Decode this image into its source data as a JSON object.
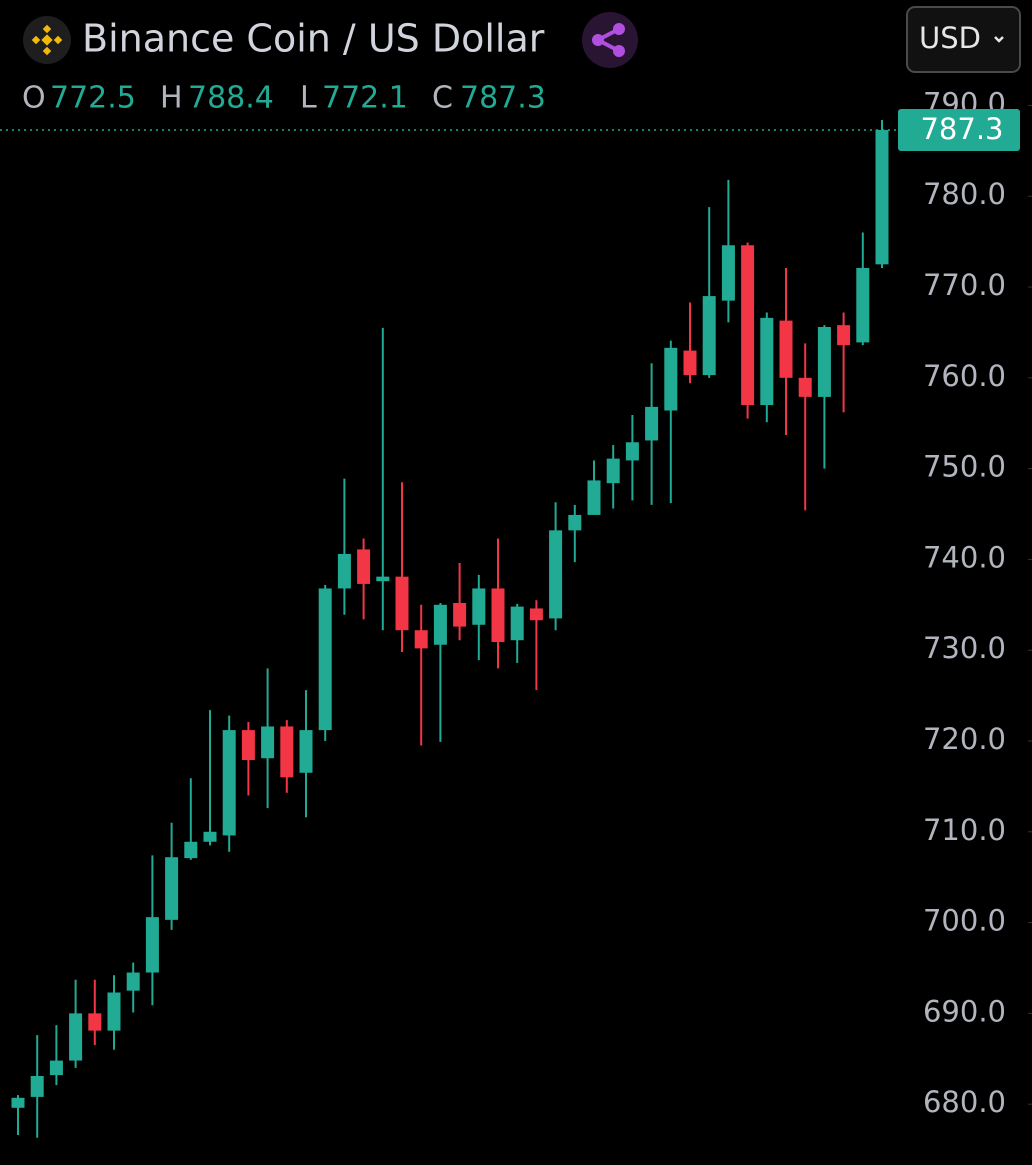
{
  "chart_data": {
    "type": "candlestick",
    "title": "Binance Coin / US Dollar",
    "currency": "USD",
    "ohlc_legend": [
      {
        "label": "O",
        "value": 772.5
      },
      {
        "label": "H",
        "value": 788.4
      },
      {
        "label": "L",
        "value": 772.1
      },
      {
        "label": "C",
        "value": 787.3
      }
    ],
    "up_color": "#22ab94",
    "down_color": "#f23645",
    "open": [
      679.6,
      680.8,
      683.2,
      684.8,
      690,
      688.1,
      692.5,
      694.5,
      700.3,
      707.1,
      708.9,
      709.6,
      721.2,
      718.1,
      721.6,
      716.5,
      721.2,
      736.8,
      741.1,
      737.6,
      738.1,
      732.2,
      730.6,
      735.2,
      732.8,
      736.8,
      731.1,
      734.6,
      733.5,
      743.2,
      744.9,
      748.4,
      750.9,
      753.1,
      756.4,
      763,
      760.3,
      768.5,
      774.6,
      757,
      766.3,
      760,
      757.9,
      765.8,
      763.9,
      772.5
    ],
    "high": [
      681,
      687.6,
      688.7,
      693.7,
      693.7,
      694.2,
      695.6,
      707.4,
      711,
      715.9,
      723.4,
      722.8,
      722.1,
      728,
      722.3,
      725.6,
      737.2,
      748.9,
      742.3,
      765.5,
      748.5,
      735,
      735.2,
      739.6,
      738.3,
      742.3,
      735.1,
      735.5,
      746.3,
      746,
      750.9,
      752.6,
      755.9,
      761.6,
      764.1,
      768.3,
      778.8,
      781.8,
      774.9,
      767.2,
      772.1,
      763.8,
      765.8,
      767.2,
      776,
      788.4
    ],
    "low": [
      676.6,
      676.3,
      682.1,
      684,
      686.5,
      686,
      690.1,
      690.9,
      699.2,
      706.9,
      708.5,
      707.8,
      714,
      712.6,
      714.3,
      711.6,
      720,
      733.9,
      733.4,
      732.2,
      729.8,
      719.5,
      719.9,
      731.1,
      728.9,
      728,
      728.6,
      725.6,
      732.2,
      739.7,
      744.9,
      745.6,
      746.5,
      746,
      746.2,
      759.4,
      760,
      766.1,
      755.5,
      755.1,
      753.7,
      745.4,
      750,
      756.2,
      763.6,
      772.1
    ],
    "close": [
      680.7,
      683.1,
      684.8,
      690,
      688.1,
      692.3,
      694.5,
      700.6,
      707.2,
      708.9,
      710,
      721.2,
      717.9,
      721.6,
      716,
      721.2,
      736.8,
      740.6,
      737.3,
      738.1,
      732.2,
      730.2,
      735,
      732.6,
      736.8,
      730.9,
      734.8,
      733.3,
      743.2,
      744.9,
      748.7,
      751.1,
      752.9,
      756.8,
      763.3,
      760.3,
      769,
      774.6,
      757,
      766.6,
      760,
      757.9,
      765.6,
      763.6,
      772.1,
      787.3
    ],
    "ylim": [
      673.3,
      791.7
    ],
    "yticks": [
      {
        "value": 680,
        "label": "680.0"
      },
      {
        "value": 690,
        "label": "690.0"
      },
      {
        "value": 700,
        "label": "700.0"
      },
      {
        "value": 710,
        "label": "710.0"
      },
      {
        "value": 720,
        "label": "720.0"
      },
      {
        "value": 730,
        "label": "730.0"
      },
      {
        "value": 740,
        "label": "740.0"
      },
      {
        "value": 750,
        "label": "750.0"
      },
      {
        "value": 760,
        "label": "760.0"
      },
      {
        "value": 770,
        "label": "770.0"
      },
      {
        "value": 780,
        "label": "780.0"
      },
      {
        "value": 790,
        "label": "790.0"
      }
    ]
  }
}
